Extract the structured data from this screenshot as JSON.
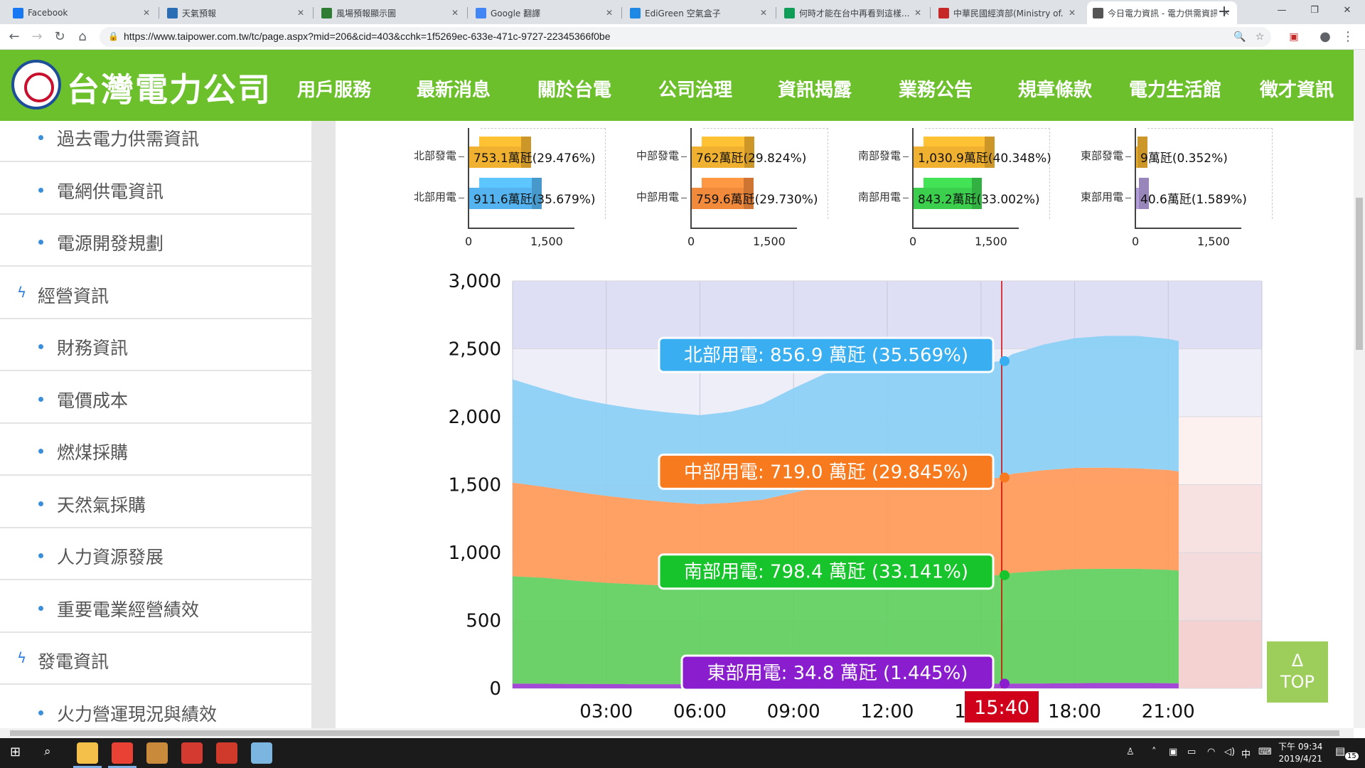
{
  "browser": {
    "tabs": [
      {
        "label": "Facebook",
        "color": "#1877f2",
        "active": false
      },
      {
        "label": "天氣預報",
        "color": "#2a6db5",
        "active": false
      },
      {
        "label": "風場預報顯示圖",
        "color": "#2e7d32",
        "active": false
      },
      {
        "label": "Google 翻譯",
        "color": "#4285f4",
        "active": false
      },
      {
        "label": "EdiGreen 空氣盒子",
        "color": "#1e88e5",
        "active": false
      },
      {
        "label": "何時才能在台中再看到這樣...",
        "color": "#0f9d58",
        "active": false
      },
      {
        "label": "中華民國經濟部(Ministry of...",
        "color": "#c62828",
        "active": false
      },
      {
        "label": "今日電力資訊 - 電力供需資訊",
        "color": "#555555",
        "active": true
      }
    ],
    "new_tab": "+",
    "url": "https://www.taipower.com.tw/tc/page.aspx?mid=206&cid=403&cchk=1f5269ec-633e-471c-9727-22345366f0be"
  },
  "site": {
    "company": "台灣電力公司",
    "nav": [
      "用戶服務",
      "最新消息",
      "關於台電",
      "公司治理",
      "資訊揭露",
      "業務公告",
      "規章條款",
      "電力生活館",
      "徵才資訊"
    ]
  },
  "sidebar": {
    "items": [
      {
        "label": "過去電力供需資訊",
        "section": false
      },
      {
        "label": "電網供電資訊",
        "section": false
      },
      {
        "label": "電源開發規劃",
        "section": false
      },
      {
        "label": "經營資訊",
        "section": true
      },
      {
        "label": "財務資訊",
        "section": false
      },
      {
        "label": "電價成本",
        "section": false
      },
      {
        "label": "燃煤採購",
        "section": false
      },
      {
        "label": "天然氣採購",
        "section": false
      },
      {
        "label": "人力資源發展",
        "section": false
      },
      {
        "label": "重要電業經營績效",
        "section": false
      },
      {
        "label": "發電資訊",
        "section": true
      },
      {
        "label": "火力營運現況與績效",
        "section": false
      }
    ]
  },
  "mini_charts": [
    {
      "rows": [
        {
          "label": "北部發電",
          "value": 753.1,
          "text": "753.1萬瓩(29.476%)",
          "color": "#f0b030"
        },
        {
          "label": "北部用電",
          "value": 911.6,
          "text": "911.6萬瓩(35.679%)",
          "color": "#55b4ef"
        }
      ],
      "xticks": [
        "0",
        "1,500"
      ]
    },
    {
      "rows": [
        {
          "label": "中部發電",
          "value": 762,
          "text": "762萬瓩(29.824%)",
          "color": "#f0b030"
        },
        {
          "label": "中部用電",
          "value": 759.6,
          "text": "759.6萬瓩(29.730%)",
          "color": "#f28a3c"
        }
      ],
      "xticks": [
        "0",
        "1,500"
      ]
    },
    {
      "rows": [
        {
          "label": "南部發電",
          "value": 1030.9,
          "text": "1,030.9萬瓩(40.348%)",
          "color": "#f0b030"
        },
        {
          "label": "南部用電",
          "value": 843.2,
          "text": "843.2萬瓩(33.002%)",
          "color": "#3ccf4e"
        }
      ],
      "xticks": [
        "0",
        "1,500"
      ]
    },
    {
      "rows": [
        {
          "label": "東部發電",
          "value": 9,
          "text": "9萬瓩(0.352%)",
          "color": "#f0b030"
        },
        {
          "label": "東部用電",
          "value": 40.6,
          "text": "40.6萬瓩(1.589%)",
          "color": "#b39ddb"
        }
      ],
      "xticks": [
        "0",
        "1,500"
      ]
    }
  ],
  "chart_data": {
    "type": "area",
    "stacked": true,
    "x": [
      "00:00",
      "01:00",
      "02:00",
      "03:00",
      "04:00",
      "05:00",
      "06:00",
      "07:00",
      "08:00",
      "09:00",
      "10:00",
      "11:00",
      "12:00",
      "13:00",
      "14:00",
      "15:00",
      "15:40",
      "16:00",
      "17:00",
      "18:00",
      "19:00",
      "20:00",
      "21:00",
      "21:20"
    ],
    "xticks": [
      "03:00",
      "06:00",
      "09:00",
      "12:00",
      "15:00",
      "18:00",
      "21:00"
    ],
    "ylim": [
      0,
      3000
    ],
    "yticks": [
      "0",
      "500",
      "1,000",
      "1,500",
      "2,000",
      "2,500",
      "3,000"
    ],
    "series": [
      {
        "name": "東部用電",
        "color": "#9c3dd6",
        "values": [
          35,
          34,
          33,
          32,
          31,
          31,
          31,
          32,
          34,
          35,
          35,
          36,
          36,
          35,
          35,
          35,
          34.8,
          35,
          36,
          38,
          40,
          40,
          38,
          37
        ]
      },
      {
        "name": "南部用電",
        "color": "#5fd05f",
        "values": [
          790,
          780,
          760,
          745,
          735,
          725,
          715,
          720,
          735,
          765,
          790,
          800,
          805,
          795,
          790,
          795,
          798.4,
          815,
          830,
          840,
          840,
          840,
          835,
          830
        ]
      },
      {
        "name": "中部用電",
        "color": "#ff9a5a",
        "values": [
          690,
          670,
          655,
          640,
          625,
          615,
          610,
          615,
          620,
          640,
          670,
          690,
          700,
          700,
          705,
          712,
          719,
          730,
          740,
          745,
          745,
          740,
          735,
          730
        ]
      },
      {
        "name": "北部用電",
        "color": "#89cff5",
        "values": [
          760,
          720,
          690,
          675,
          665,
          660,
          655,
          670,
          705,
          770,
          820,
          845,
          855,
          850,
          852,
          855,
          856.9,
          880,
          925,
          955,
          970,
          975,
          965,
          960
        ]
      }
    ],
    "cursor": {
      "time": "15:40",
      "index": 16
    },
    "tooltips": [
      {
        "text": "北部用電: 856.9 萬瓩 (35.569%)",
        "color": "#39aef0"
      },
      {
        "text": "中部用電: 719.0 萬瓩 (29.845%)",
        "color": "#f77a1e"
      },
      {
        "text": "南部用電: 798.4 萬瓩 (33.141%)",
        "color": "#18c42b"
      },
      {
        "text": "東部用電: 34.8 萬瓩 (1.445%)",
        "color": "#8a1ecf"
      }
    ],
    "top_button": {
      "arrow": "Δ",
      "label": "TOP"
    }
  },
  "taskbar": {
    "apps": [
      {
        "color": "#f5c04a"
      },
      {
        "color": "#e94235"
      },
      {
        "color": "#c98a3c"
      },
      {
        "color": "#d43a2f"
      },
      {
        "color": "#d03a2a"
      },
      {
        "color": "#7ab6e0"
      }
    ],
    "ime": "中",
    "time": "下午 09:34",
    "date": "2019/4/21",
    "notifications": "15"
  }
}
